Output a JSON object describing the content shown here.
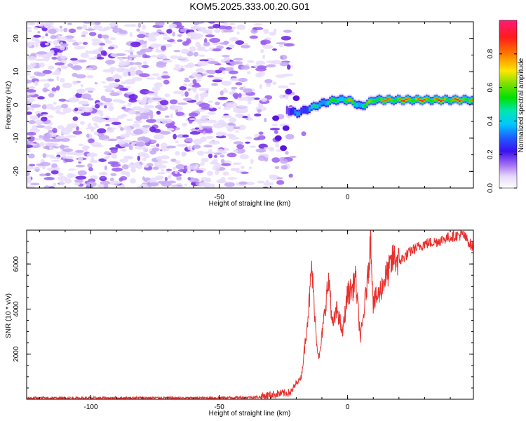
{
  "title": "KOM5.2025.333.00.20.G01",
  "colors": {
    "snr_line": "#e8302c",
    "axis": "#000000",
    "speckle_light": "#dccdfa",
    "speckle_dark": "#6a1ee6"
  },
  "chart_data": [
    {
      "type": "heatmap",
      "name": "spectrogram",
      "xlabel": "Height of straight line (km)",
      "ylabel": "Frequency (Hz)",
      "xlim": [
        -125,
        49
      ],
      "ylim": [
        -25,
        25
      ],
      "x_ticks": [
        -100,
        -50,
        0
      ],
      "y_ticks": [
        -20,
        -10,
        0,
        10,
        20
      ],
      "signal_line": {
        "description_points_x": [
          -24,
          -20,
          -15,
          -10,
          -5,
          0,
          5,
          10,
          20,
          30,
          49
        ],
        "frequency_hz": [
          -1.5,
          -2.5,
          -1.0,
          0.5,
          1.5,
          1.5,
          -0.5,
          1.5,
          1.5,
          1.5,
          1.5
        ],
        "amplitude": [
          0.25,
          0.45,
          0.55,
          0.6,
          0.7,
          0.8,
          0.65,
          0.85,
          0.95,
          0.95,
          0.95
        ]
      },
      "noise_region_x": [
        -125,
        -22
      ],
      "colorbar": {
        "label": "Normalized spectral amplitude",
        "range": [
          0,
          1
        ],
        "ticks": [
          0.0,
          0.2,
          0.4,
          0.6,
          0.8
        ],
        "tick_labels": [
          "0.0",
          "0.2",
          "0.4",
          "0.6",
          "0.8"
        ]
      }
    },
    {
      "type": "line",
      "name": "snr",
      "xlabel": "Height of straight line (km)",
      "ylabel": "SNR (10 * v/v)",
      "xlim": [
        -125,
        49
      ],
      "ylim": [
        0,
        7500
      ],
      "x_ticks": [
        -100,
        -50,
        0
      ],
      "y_ticks": [
        2000,
        4000,
        6000
      ],
      "series": [
        {
          "name": "SNR",
          "x": [
            -125,
            -100,
            -80,
            -60,
            -40,
            -34,
            -30,
            -26,
            -22,
            -20,
            -18,
            -17,
            -15,
            -14,
            -12,
            -11,
            -10,
            -8,
            -7,
            -6,
            -4,
            -2,
            0,
            2,
            3,
            5,
            6,
            8,
            9,
            10,
            12,
            14,
            16,
            18,
            20,
            25,
            30,
            35,
            40,
            45,
            49
          ],
          "values": [
            50,
            50,
            60,
            50,
            80,
            100,
            200,
            250,
            300,
            700,
            1000,
            2000,
            4200,
            5900,
            2500,
            1800,
            2800,
            4800,
            5200,
            3200,
            4000,
            2900,
            4700,
            4900,
            5500,
            2700,
            3500,
            5600,
            7200,
            4300,
            4600,
            5200,
            5700,
            6300,
            6100,
            6600,
            6900,
            7000,
            7200,
            7300,
            6700
          ]
        }
      ]
    }
  ]
}
